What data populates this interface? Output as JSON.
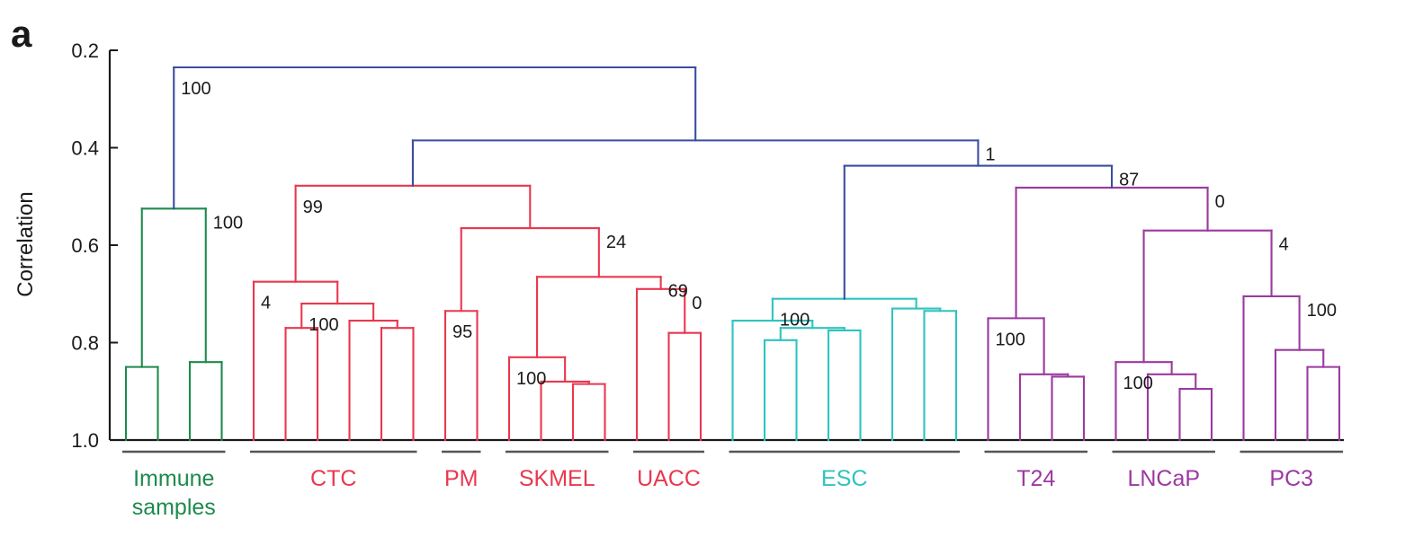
{
  "figure": {
    "panel_letter": "a",
    "background": "#ffffff"
  },
  "chart_data": {
    "type": "dendrogram",
    "ylabel": "Correlation",
    "xlabel": "",
    "title": "",
    "ylim": [
      1.0,
      0.2
    ],
    "y_ticks": [
      0.2,
      0.4,
      0.6,
      0.8,
      1.0
    ],
    "y_tick_labels": [
      "0.2",
      "0.4",
      "0.6",
      "0.8",
      "1.0"
    ],
    "grid": false,
    "colors": {
      "root": "#3a4ea0",
      "immune": "#1d8a4e",
      "red": "#e8384f",
      "esc": "#2ec4c0",
      "purple": "#9b3aa0",
      "axis": "#1a1a1a",
      "group_bar": "#555555"
    },
    "groups": [
      {
        "label": "Immune samples",
        "label_lines": [
          "Immune",
          "samples"
        ],
        "color_key": "immune",
        "leaves": [
          1,
          2,
          3,
          4
        ]
      },
      {
        "label": "CTC",
        "label_lines": [
          "CTC"
        ],
        "color_key": "red",
        "leaves": [
          5,
          6,
          7,
          8,
          9,
          10
        ]
      },
      {
        "label": "PM",
        "label_lines": [
          "PM"
        ],
        "color_key": "red",
        "leaves": [
          11,
          12
        ]
      },
      {
        "label": "SKMEL",
        "label_lines": [
          "SKMEL"
        ],
        "color_key": "red",
        "leaves": [
          13,
          14,
          15,
          16
        ]
      },
      {
        "label": "UACC",
        "label_lines": [
          "UACC"
        ],
        "color_key": "red",
        "leaves": [
          17,
          18,
          19
        ]
      },
      {
        "label": "ESC",
        "label_lines": [
          "ESC"
        ],
        "color_key": "esc",
        "leaves": [
          20,
          21,
          22,
          23,
          24,
          25,
          26,
          27
        ]
      },
      {
        "label": "T24",
        "label_lines": [
          "T24"
        ],
        "color_key": "purple",
        "leaves": [
          28,
          29,
          30,
          31
        ]
      },
      {
        "label": "LNCaP",
        "label_lines": [
          "LNCaP"
        ],
        "color_key": "purple",
        "leaves": [
          32,
          33,
          34,
          35
        ]
      },
      {
        "label": "PC3",
        "label_lines": [
          "PC3"
        ],
        "color_key": "purple",
        "leaves": [
          36,
          37,
          38,
          39
        ]
      }
    ],
    "tree": {
      "h": 0.235,
      "c": "root",
      "lb": "100",
      "lbs": 0,
      "k": [
        {
          "h": 0.525,
          "c": "immune",
          "lb": "100",
          "lbs": 1,
          "k": [
            {
              "h": 0.85,
              "c": "immune",
              "k": [
                1,
                2
              ]
            },
            {
              "h": 0.84,
              "c": "immune",
              "k": [
                3,
                4
              ]
            }
          ]
        },
        {
          "h": 0.385,
          "c": "root",
          "lb": "1",
          "lbs": 1,
          "k": [
            {
              "h": 0.478,
              "c": "red",
              "lb": "99",
              "lbs": 0,
              "k": [
                {
                  "h": 0.675,
                  "c": "red",
                  "lb": "4",
                  "lbs": 0,
                  "k": [
                    5,
                    {
                      "h": 0.72,
                      "c": "red",
                      "lb": "100",
                      "lbs": 0,
                      "k": [
                        {
                          "h": 0.77,
                          "c": "red",
                          "k": [
                            6,
                            7
                          ]
                        },
                        {
                          "h": 0.755,
                          "c": "red",
                          "k": [
                            8,
                            {
                              "h": 0.77,
                              "c": "red",
                              "k": [
                                9,
                                10
                              ]
                            }
                          ]
                        }
                      ]
                    }
                  ]
                },
                {
                  "h": 0.565,
                  "c": "red",
                  "lb": "24",
                  "lbs": 1,
                  "k": [
                    {
                      "h": 0.735,
                      "c": "red",
                      "lb": "95",
                      "lbs": 0,
                      "k": [
                        11,
                        12
                      ]
                    },
                    {
                      "h": 0.665,
                      "c": "red",
                      "lb": "69",
                      "lbs": 1,
                      "k": [
                        {
                          "h": 0.83,
                          "c": "red",
                          "lb": "100",
                          "lbs": 0,
                          "k": [
                            13,
                            {
                              "h": 0.88,
                              "c": "red",
                              "k": [
                                14,
                                {
                                  "h": 0.885,
                                  "c": "red",
                                  "k": [
                                    15,
                                    16
                                  ]
                                }
                              ]
                            }
                          ]
                        },
                        {
                          "h": 0.69,
                          "c": "red",
                          "lb": "0",
                          "lbs": 1,
                          "k": [
                            17,
                            {
                              "h": 0.78,
                              "c": "red",
                              "k": [
                                18,
                                19
                              ]
                            }
                          ]
                        }
                      ]
                    }
                  ]
                }
              ]
            },
            {
              "h": 0.437,
              "c": "root",
              "lb": "87",
              "lbs": 1,
              "k": [
                {
                  "h": 0.71,
                  "c": "esc",
                  "lb": "100",
                  "lbs": 0,
                  "k": [
                    {
                      "h": 0.755,
                      "c": "esc",
                      "k": [
                        20,
                        {
                          "h": 0.77,
                          "c": "esc",
                          "k": [
                            {
                              "h": 0.795,
                              "c": "esc",
                              "k": [
                                21,
                                22
                              ]
                            },
                            {
                              "h": 0.775,
                              "c": "esc",
                              "k": [
                                23,
                                24
                              ]
                            }
                          ]
                        }
                      ]
                    },
                    {
                      "h": 0.73,
                      "c": "esc",
                      "k": [
                        25,
                        {
                          "h": 0.735,
                          "c": "esc",
                          "k": [
                            26,
                            27
                          ]
                        }
                      ]
                    }
                  ]
                },
                {
                  "h": 0.482,
                  "c": "purple",
                  "lb": "0",
                  "lbs": 1,
                  "k": [
                    {
                      "h": 0.75,
                      "c": "purple",
                      "lb": "100",
                      "lbs": 0,
                      "k": [
                        28,
                        {
                          "h": 0.865,
                          "c": "purple",
                          "k": [
                            29,
                            {
                              "h": 0.87,
                              "c": "purple",
                              "k": [
                                30,
                                31
                              ]
                            }
                          ]
                        }
                      ]
                    },
                    {
                      "h": 0.57,
                      "c": "purple",
                      "lb": "4",
                      "lbs": 1,
                      "k": [
                        {
                          "h": 0.84,
                          "c": "purple",
                          "lb": "100",
                          "lbs": 0,
                          "k": [
                            32,
                            {
                              "h": 0.865,
                              "c": "purple",
                              "k": [
                                33,
                                {
                                  "h": 0.895,
                                  "c": "purple",
                                  "k": [
                                    34,
                                    35
                                  ]
                                }
                              ]
                            }
                          ]
                        },
                        {
                          "h": 0.705,
                          "c": "purple",
                          "lb": "100",
                          "lbs": 1,
                          "k": [
                            36,
                            {
                              "h": 0.815,
                              "c": "purple",
                              "k": [
                                37,
                                {
                                  "h": 0.85,
                                  "c": "purple",
                                  "k": [
                                    38,
                                    39
                                  ]
                                }
                              ]
                            }
                          ]
                        }
                      ]
                    }
                  ]
                }
              ]
            }
          ]
        }
      ]
    }
  }
}
